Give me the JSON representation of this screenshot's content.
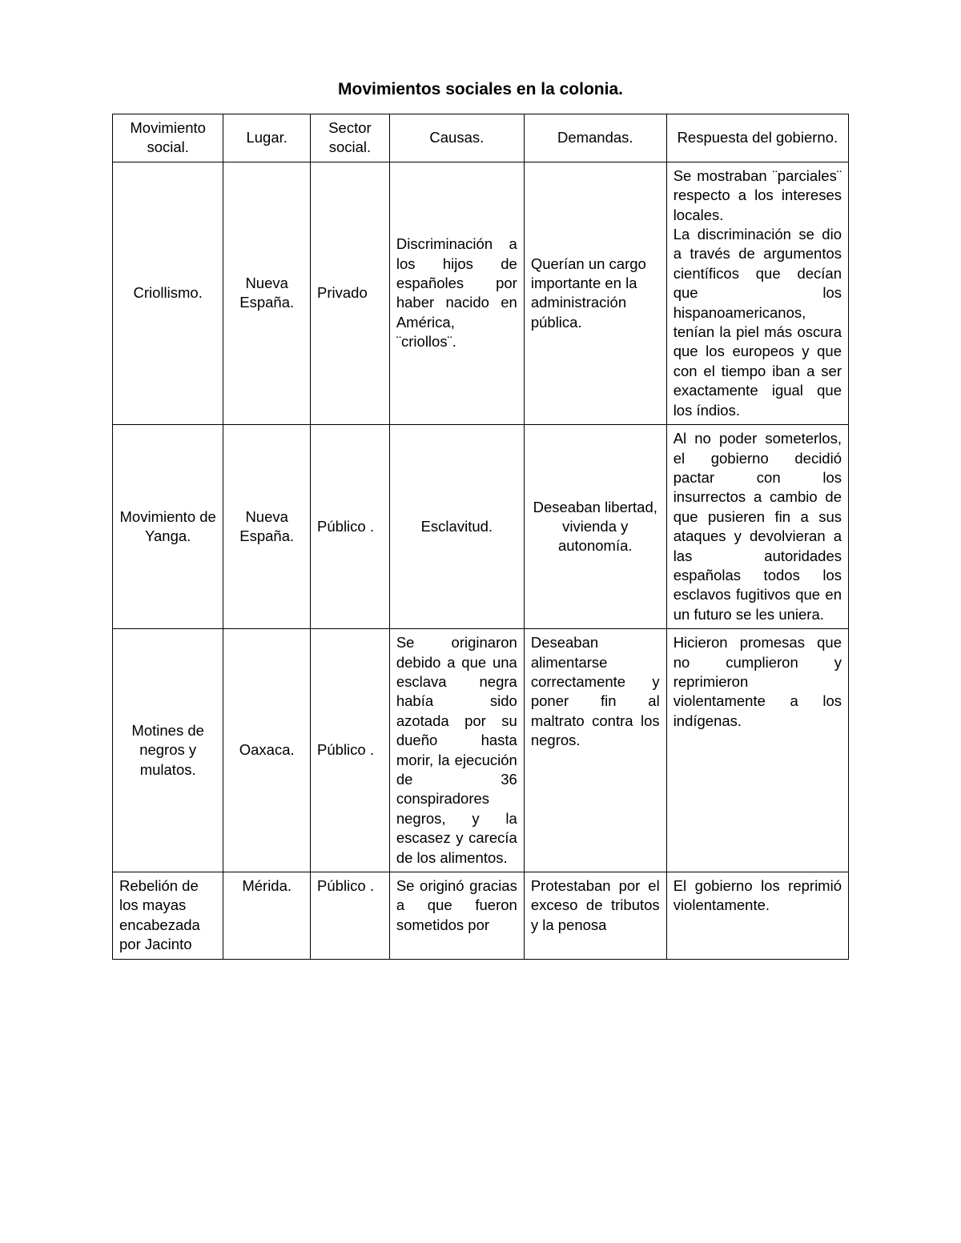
{
  "title": "Movimientos sociales en la colonia.",
  "table": {
    "columns": [
      "Movimiento social.",
      "Lugar.",
      "Sector social.",
      "Causas.",
      "Demandas.",
      "Respuesta del gobierno."
    ],
    "rows": [
      {
        "movimiento": "Criollismo.",
        "lugar": "Nueva España.",
        "sector": "Privado",
        "causas": "Discriminación a los hijos de españoles por haber nacido en América, ¨criollos¨.",
        "demandas": "Querían un cargo importante en la administración pública.",
        "respuesta": "Se mostraban ¨parciales¨ respecto a los intereses locales.\nLa discriminación se dio a través de argumentos científicos que decían que los hispanoamericanos, tenían la piel más oscura que los europeos y que con el tiempo iban a ser exactamente igual que los índios."
      },
      {
        "movimiento": "Movimiento de Yanga.",
        "lugar": "Nueva España.",
        "sector": "Público .",
        "causas": "Esclavitud.",
        "demandas": "Deseaban libertad, vivienda y autonomía.",
        "respuesta": "Al no poder someterlos, el gobierno decidió pactar con los insurrectos a cambio de que pusieren fin a sus ataques y devolvieran a las autoridades españolas todos los esclavos fugitivos que en un futuro se les uniera."
      },
      {
        "movimiento": "Motines de negros y mulatos.",
        "lugar": "Oaxaca.",
        "sector": "Público .",
        "causas": "Se originaron debido a que una esclava negra había sido azotada por su dueño hasta morir, la ejecución de 36 conspiradores negros, y la escasez y carecía de los alimentos.",
        "demandas": "Deseaban alimentarse correctamente y poner fin al maltrato contra los negros.",
        "respuesta": "Hicieron promesas que no cumplieron y reprimieron violentamente a los indígenas."
      },
      {
        "movimiento": "Rebelión de los mayas encabezada por Jacinto",
        "lugar": "Mérida.",
        "sector": "Público .",
        "causas": "Se originó gracias a que fueron sometidos por",
        "demandas": "Protestaban por el exceso de tributos y la penosa",
        "respuesta": "El gobierno los reprimió violentamente."
      }
    ],
    "styling": {
      "border_color": "#000000",
      "border_width": 1.5,
      "background_color": "#ffffff",
      "text_color": "#000000",
      "cell_fontsize": 18.5,
      "title_fontsize": 21,
      "font_family": "Arial",
      "column_widths_pct": [
        14,
        11,
        10,
        17,
        18,
        23
      ],
      "column_alignments": [
        "center",
        "center",
        "left",
        "justify",
        "justify",
        "justify"
      ],
      "header_alignment": "center"
    }
  }
}
